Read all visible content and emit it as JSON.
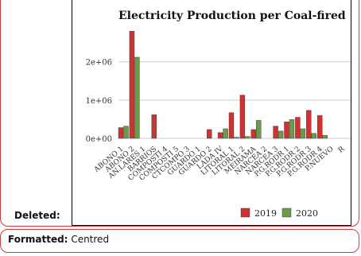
{
  "comments": {
    "deleted_label": "Deleted:",
    "formatted_label": "Formatted:",
    "formatted_value": "Centred"
  },
  "colors": {
    "series_2019": "#cc3333",
    "series_2020": "#6a9a4a",
    "balloon_border": "#d23b3b"
  },
  "chart_data": {
    "type": "bar",
    "title": "Electricity Production per Coal-fired",
    "categories": [
      "ABONO 1",
      "ABONO 2",
      "AN.LARES 1",
      "BARRIOS",
      "COMPOSTI 4",
      "COMPOSTI 5",
      "CTCOMPO 3",
      "GUARDO 1",
      "GUARDO 2",
      "LADA IV",
      "LITORAL 1",
      "LITORAL 2",
      "MEIRAMA",
      "NARCEA 2",
      "NARCEA 3",
      "P.G.RODR 1",
      "P.G.RODR 2",
      "P.G.RODR 3",
      "P.G.RODR 4",
      "P.NUEVO",
      "R"
    ],
    "series": [
      {
        "name": "2019",
        "values": [
          280000,
          2800000,
          0,
          620000,
          0,
          0,
          0,
          0,
          230000,
          150000,
          670000,
          1130000,
          230000,
          0,
          320000,
          430000,
          550000,
          730000,
          600000,
          0,
          0
        ]
      },
      {
        "name": "2020",
        "values": [
          320000,
          2120000,
          0,
          0,
          0,
          0,
          0,
          0,
          0,
          250000,
          30000,
          50000,
          470000,
          0,
          190000,
          490000,
          250000,
          130000,
          80000,
          0,
          0
        ]
      }
    ],
    "yticks": [
      "0e+00",
      "1e+06",
      "2e+06"
    ],
    "ytick_values": [
      0,
      1000000,
      2000000
    ],
    "ylim": [
      0,
      2950000
    ],
    "grid": true,
    "legend_position": "bottom"
  }
}
